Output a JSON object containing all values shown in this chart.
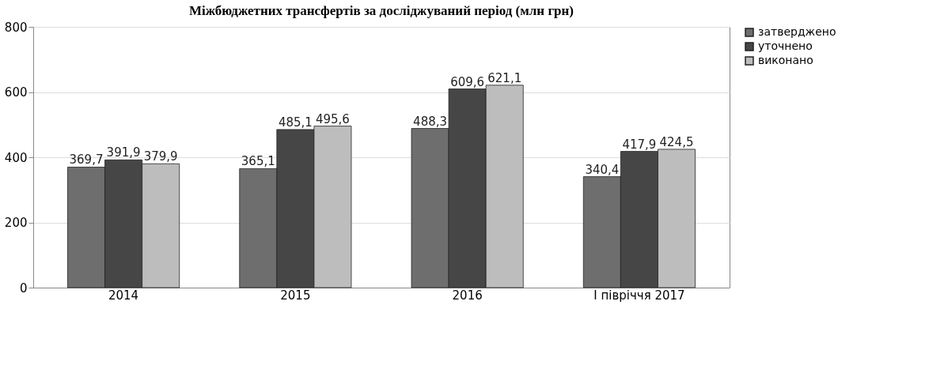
{
  "chart_data": {
    "type": "bar",
    "title": "Міжбюджетних трансфертів за досліджуваний період (млн грн)",
    "categories": [
      "2014",
      "2015",
      "2016",
      "І півріччя 2017"
    ],
    "series": [
      {
        "name": "затверджено",
        "color": "#6e6e6e",
        "values": [
          369.7,
          365.1,
          488.3,
          340.4
        ],
        "value_labels": [
          "369,7",
          "365,1",
          "488,3",
          "340,4"
        ]
      },
      {
        "name": "уточнено",
        "color": "#464646",
        "values": [
          391.9,
          485.1,
          609.6,
          417.9
        ],
        "value_labels": [
          "391,9",
          "485,1",
          "609,6",
          "417,9"
        ]
      },
      {
        "name": "виконано",
        "color": "#bdbdbd",
        "values": [
          379.9,
          495.6,
          621.1,
          424.5
        ],
        "value_labels": [
          "379,9",
          "495,6",
          "621,1",
          "424,5"
        ]
      }
    ],
    "ylim": [
      0,
      800
    ],
    "yticks": [
      0,
      200,
      400,
      600,
      800
    ],
    "grid": "y",
    "legend": "right"
  }
}
